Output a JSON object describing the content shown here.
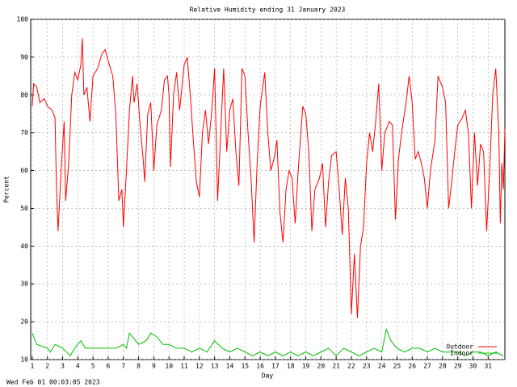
{
  "chart_data": {
    "type": "line",
    "title": "Relative Humidity ending 31 January 2023",
    "xlabel": "Day",
    "ylabel": "Percent",
    "footer": "Wed Feb 01 00:03:05 2023",
    "xlim": [
      0.9,
      32.1
    ],
    "ylim": [
      10,
      100
    ],
    "xticks": [
      1,
      2,
      3,
      4,
      5,
      6,
      7,
      8,
      9,
      10,
      11,
      12,
      13,
      14,
      15,
      16,
      17,
      18,
      19,
      20,
      21,
      22,
      23,
      24,
      25,
      26,
      27,
      28,
      29,
      30,
      31
    ],
    "yticks": [
      10,
      20,
      30,
      40,
      50,
      60,
      70,
      80,
      90,
      100
    ],
    "grid": true,
    "legend": "lower right",
    "series": [
      {
        "name": "Outdoor",
        "color": "#ff0000",
        "x": [
          1.0,
          1.1,
          1.3,
          1.5,
          1.8,
          2.0,
          2.3,
          2.5,
          2.6,
          2.7,
          2.9,
          3.1,
          3.2,
          3.4,
          3.6,
          3.8,
          4.0,
          4.2,
          4.3,
          4.4,
          4.6,
          4.8,
          5.0,
          5.3,
          5.6,
          5.8,
          6.0,
          6.3,
          6.5,
          6.7,
          6.9,
          7.0,
          7.2,
          7.4,
          7.6,
          7.7,
          7.9,
          8.1,
          8.3,
          8.4,
          8.6,
          8.8,
          9.0,
          9.2,
          9.5,
          9.7,
          9.9,
          10.0,
          10.1,
          10.3,
          10.5,
          10.7,
          11.0,
          11.2,
          11.4,
          11.6,
          11.8,
          12.0,
          12.2,
          12.4,
          12.6,
          12.8,
          13.0,
          13.2,
          13.4,
          13.6,
          13.8,
          14.0,
          14.2,
          14.4,
          14.6,
          14.8,
          15.0,
          15.2,
          15.4,
          15.6,
          15.8,
          16.0,
          16.3,
          16.5,
          16.7,
          16.9,
          17.1,
          17.3,
          17.5,
          17.7,
          17.9,
          18.1,
          18.3,
          18.5,
          18.8,
          19.0,
          19.2,
          19.4,
          19.6,
          19.9,
          20.1,
          20.3,
          20.5,
          20.7,
          21.0,
          21.2,
          21.4,
          21.6,
          21.8,
          22.0,
          22.2,
          22.4,
          22.6,
          22.8,
          23.0,
          23.2,
          23.4,
          23.6,
          23.8,
          24.0,
          24.2,
          24.5,
          24.7,
          24.9,
          25.1,
          25.3,
          25.6,
          25.8,
          26.0,
          26.2,
          26.4,
          26.6,
          26.8,
          27.0,
          27.2,
          27.5,
          27.7,
          28.0,
          28.2,
          28.4,
          28.6,
          28.8,
          29.0,
          29.3,
          29.5,
          29.7,
          29.9,
          30.1,
          30.3,
          30.5,
          30.7,
          30.9,
          31.1,
          31.3,
          31.5,
          31.7,
          31.8,
          31.9,
          32.0,
          32.1
        ],
        "values": [
          77,
          83,
          82,
          78,
          79,
          77,
          76,
          74,
          55,
          44,
          60,
          73,
          52,
          62,
          80,
          86,
          84,
          88,
          95,
          80,
          82,
          73,
          85,
          87,
          91,
          92,
          89,
          85,
          75,
          52,
          55,
          45,
          60,
          76,
          85,
          78,
          83,
          72,
          63,
          57,
          75,
          78,
          60,
          72,
          76,
          84,
          85,
          80,
          61,
          80,
          86,
          76,
          88,
          90,
          80,
          68,
          57,
          53,
          70,
          76,
          67,
          75,
          87,
          52,
          70,
          87,
          65,
          76,
          79,
          65,
          56,
          87,
          85,
          70,
          58,
          41,
          62,
          77,
          86,
          70,
          60,
          63,
          68,
          49,
          41,
          55,
          60,
          58,
          46,
          60,
          77,
          75,
          65,
          44,
          55,
          58,
          62,
          45,
          57,
          64,
          65,
          55,
          43,
          58,
          50,
          22,
          38,
          21,
          40,
          45,
          62,
          70,
          65,
          73,
          83,
          60,
          70,
          73,
          72,
          47,
          63,
          70,
          78,
          85,
          78,
          63,
          65,
          62,
          58,
          50,
          60,
          68,
          85,
          82,
          78,
          50,
          57,
          65,
          72,
          74,
          76,
          70,
          50,
          70,
          56,
          67,
          65,
          44,
          60,
          80,
          87,
          70,
          46,
          62,
          55,
          71
        ]
      },
      {
        "name": "Indoor",
        "color": "#00c000",
        "x": [
          1.0,
          1.3,
          2.0,
          2.2,
          2.5,
          3.0,
          3.5,
          3.8,
          4.2,
          4.5,
          5.0,
          6.0,
          6.5,
          7.0,
          7.2,
          7.4,
          7.6,
          8.0,
          8.5,
          8.8,
          9.2,
          9.6,
          10.0,
          10.5,
          11.0,
          11.5,
          12.0,
          12.5,
          13.0,
          13.5,
          14.0,
          14.5,
          15.0,
          15.5,
          16.0,
          16.5,
          17.0,
          17.5,
          18.0,
          18.5,
          19.0,
          19.5,
          20.0,
          20.5,
          21.0,
          21.5,
          22.0,
          22.5,
          23.0,
          23.5,
          24.0,
          24.3,
          24.6,
          25.0,
          25.5,
          26.0,
          26.5,
          27.0,
          27.5,
          28.0,
          28.5,
          29.0,
          29.5,
          30.0,
          30.5,
          31.0,
          31.5,
          32.0
        ],
        "values": [
          17,
          14,
          13,
          12,
          14,
          13,
          11,
          13,
          15,
          13,
          13,
          13,
          13,
          14,
          13,
          17,
          16,
          14,
          15,
          17,
          16,
          14,
          14,
          13,
          13,
          12,
          13,
          12,
          15,
          13,
          12,
          13,
          12,
          11,
          12,
          11,
          12,
          11,
          12,
          11,
          12,
          11,
          12,
          13,
          11,
          13,
          12,
          11,
          12,
          13,
          12,
          18,
          15,
          13,
          12,
          13,
          13,
          12,
          13,
          12,
          12,
          12,
          11,
          12,
          12,
          11,
          12,
          11
        ]
      }
    ]
  }
}
